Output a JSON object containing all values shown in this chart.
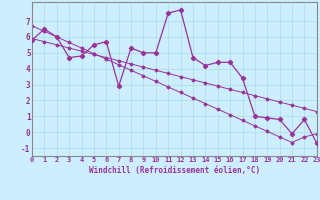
{
  "xlabel": "Windchill (Refroidissement éolien,°C)",
  "background_color": "#cceeff",
  "line_color": "#993399",
  "x_hours": [
    0,
    1,
    2,
    3,
    4,
    5,
    6,
    7,
    8,
    9,
    10,
    11,
    12,
    13,
    14,
    15,
    16,
    17,
    18,
    19,
    20,
    21,
    22,
    23
  ],
  "y_main": [
    5.8,
    6.5,
    6.0,
    4.7,
    4.8,
    5.5,
    5.7,
    2.9,
    5.3,
    5.0,
    5.0,
    7.5,
    7.7,
    4.7,
    4.2,
    4.4,
    4.4,
    3.4,
    1.0,
    0.9,
    0.8,
    -0.1,
    0.8,
    -0.7
  ],
  "y_trend1": [
    6.7,
    6.35,
    6.0,
    5.65,
    5.3,
    4.95,
    4.6,
    4.25,
    3.9,
    3.55,
    3.2,
    2.85,
    2.5,
    2.15,
    1.8,
    1.45,
    1.1,
    0.75,
    0.4,
    0.05,
    -0.3,
    -0.65,
    -0.3,
    -0.1
  ],
  "y_trend2": [
    5.9,
    5.7,
    5.5,
    5.3,
    5.1,
    4.9,
    4.7,
    4.5,
    4.3,
    4.1,
    3.9,
    3.7,
    3.5,
    3.3,
    3.1,
    2.9,
    2.7,
    2.5,
    2.3,
    2.1,
    1.9,
    1.7,
    1.5,
    1.3
  ],
  "xlim": [
    0,
    23
  ],
  "ylim": [
    -1.5,
    8.2
  ],
  "yticks": [
    -1,
    0,
    1,
    2,
    3,
    4,
    5,
    6,
    7
  ],
  "xticks": [
    0,
    1,
    2,
    3,
    4,
    5,
    6,
    7,
    8,
    9,
    10,
    11,
    12,
    13,
    14,
    15,
    16,
    17,
    18,
    19,
    20,
    21,
    22,
    23
  ],
  "grid_color": "#aadddd",
  "spine_color": "#888888",
  "tick_color": "#993399",
  "tick_fontsize": 5.0,
  "xlabel_fontsize": 5.5
}
